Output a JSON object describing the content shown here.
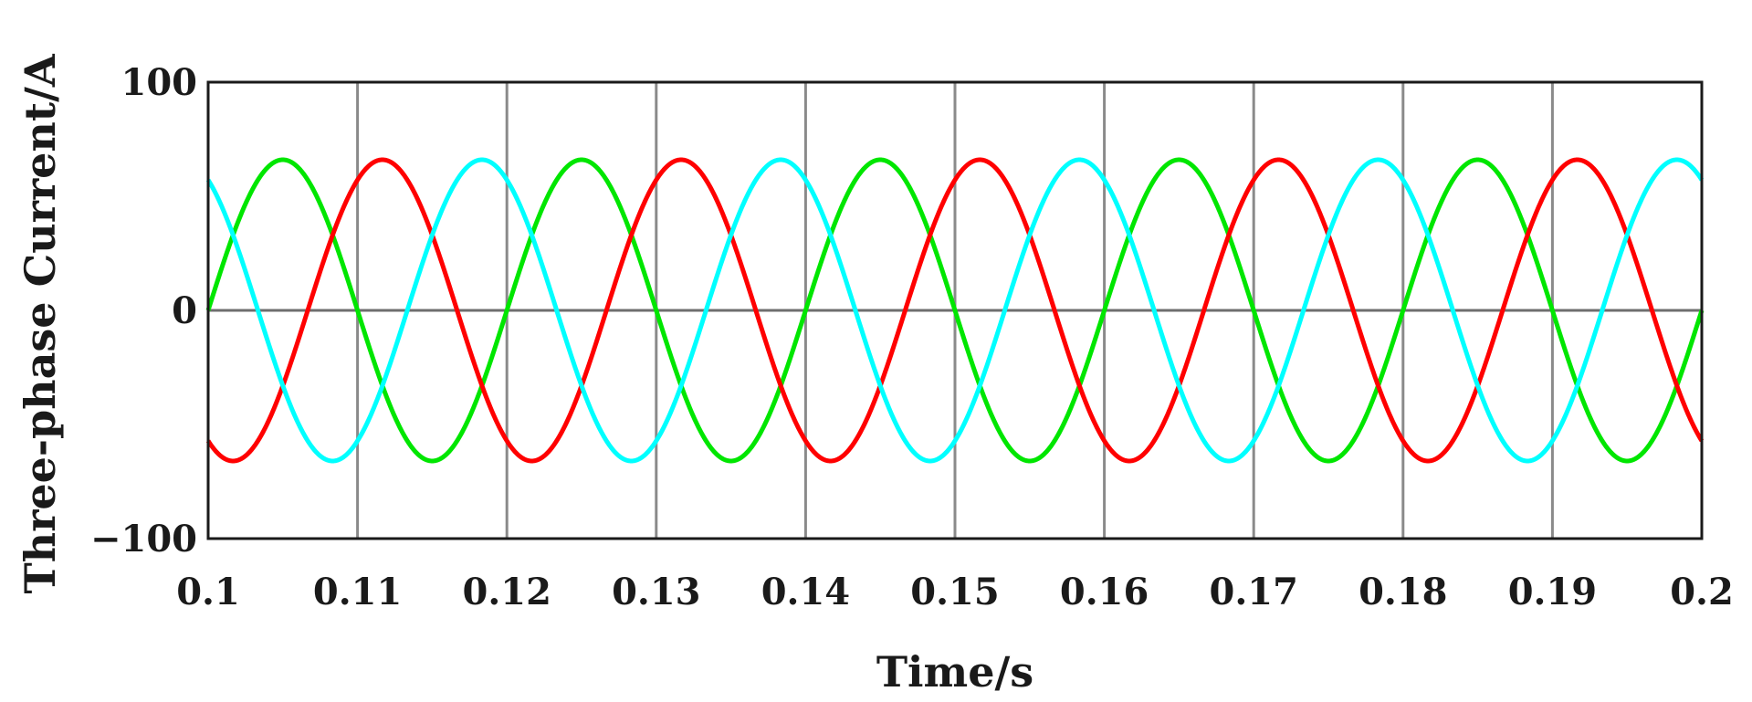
{
  "chart_data": {
    "type": "line",
    "title": "",
    "xlabel": "Time/s",
    "ylabel": "Three-phase Current/A",
    "xlim": [
      0.1,
      0.2
    ],
    "ylim": [
      -100,
      100
    ],
    "x_ticks": [
      "0.1",
      "0.11",
      "0.12",
      "0.13",
      "0.14",
      "0.15",
      "0.16",
      "0.17",
      "0.18",
      "0.19",
      "0.2"
    ],
    "y_ticks": [
      "100",
      "0",
      "−100"
    ],
    "grid": {
      "vertical": true,
      "horizontal_at_zero": true
    },
    "legend": "none",
    "frequency_hz": 50,
    "amplitude": 66,
    "series": [
      {
        "color": "#00e600",
        "amplitude": 66,
        "phase_deg_at_start": 0
      },
      {
        "color": "#ff0000",
        "amplitude": 66,
        "phase_deg_at_start": -120
      },
      {
        "color": "#00ffff",
        "amplitude": 66,
        "phase_deg_at_start": 120
      }
    ]
  }
}
